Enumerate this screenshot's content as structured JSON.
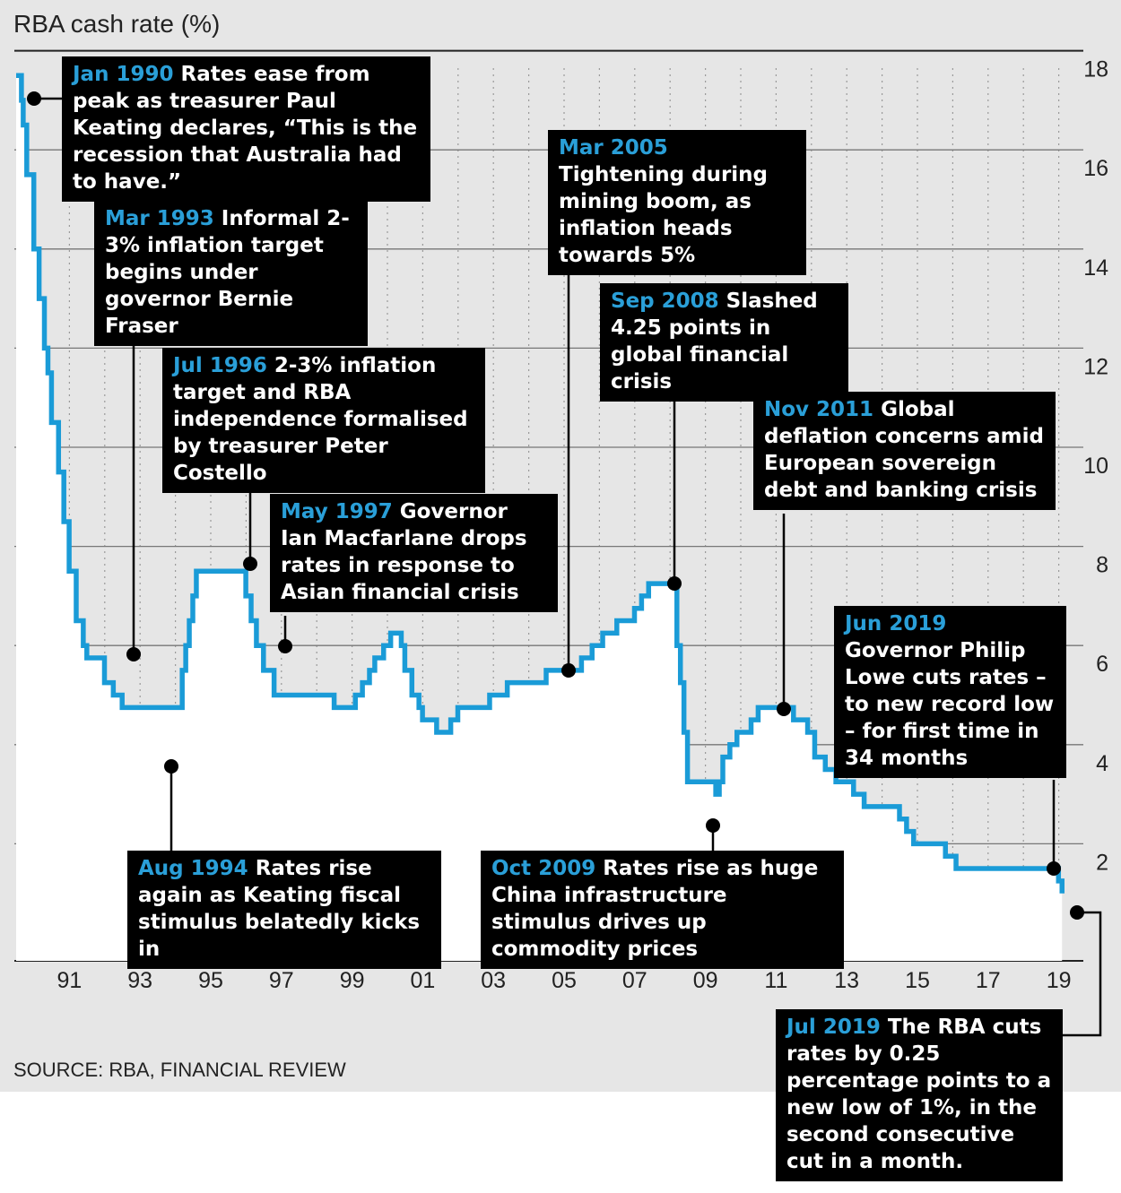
{
  "title": "RBA cash rate (%)",
  "source": "SOURCE: RBA, FINANCIAL REVIEW",
  "colors": {
    "line": "#1a9bd7",
    "date": "#2a9fd8",
    "box": "#000000",
    "background": "#e6e6e6"
  },
  "annotations": [
    {
      "date": "Jan 1990",
      "text": "Rates ease from peak as treasurer Paul Keating declares, “This is the recession that Australia had to have.”"
    },
    {
      "date": "Mar 1993",
      "text": "Informal 2-3% inflation target begins under governor Bernie Fraser"
    },
    {
      "date": "Jul 1996",
      "text": "2-3% inflation target and RBA independence formalised by treasurer Peter Costello"
    },
    {
      "date": "May 1997",
      "text": "Governor Ian Macfarlane drops rates in response to Asian financial crisis"
    },
    {
      "date": "Mar 2005",
      "text": "Tightening during mining boom, as inflation heads towards 5%"
    },
    {
      "date": "Sep 2008",
      "text": "Slashed 4.25 points in global financial crisis"
    },
    {
      "date": "Nov 2011",
      "text": "Global deflation concerns amid European sovereign debt and banking crisis"
    },
    {
      "date": "Jun 2019",
      "text": "Governor Philip Lowe cuts rates – to new record low – for first time in 34 months"
    },
    {
      "date": "Aug 1994",
      "text": "Rates rise again as Keating fiscal stimulus belatedly kicks in"
    },
    {
      "date": "Oct 2009",
      "text": "Rates rise as huge China infrastructure stimulus drives up commodity prices"
    },
    {
      "date": "Jul 2019",
      "text": "The RBA cuts rates by 0.25 percentage points to a new low of 1%, in the second consecutive cut in a month."
    }
  ],
  "chart_data": {
    "type": "line",
    "title": "RBA cash rate (%)",
    "ylim": [
      0,
      18
    ],
    "y_ticks": [
      "18",
      "16",
      "14",
      "12",
      "10",
      "8",
      "6",
      "4",
      "2"
    ],
    "x_ticks": [
      "91",
      "93",
      "95",
      "97",
      "99",
      "01",
      "03",
      "05",
      "07",
      "09",
      "11",
      "13",
      "15",
      "17",
      "19"
    ],
    "grid": true,
    "series": [
      {
        "x": [
          1990.0,
          1990.15,
          1990.2,
          1990.3,
          1990.5,
          1990.65,
          1990.8,
          1990.9,
          1991.0,
          1991.2,
          1991.35,
          1991.5,
          1991.7,
          1991.9,
          1992.0,
          1992.2,
          1992.5,
          1992.6,
          1992.75,
          1993.0,
          1993.2,
          1993.4,
          1994.0,
          1994.7,
          1994.8,
          1994.9,
          1995.0,
          1995.1,
          1995.2,
          1996.0,
          1996.5,
          1996.65,
          1996.8,
          1997.0,
          1997.3,
          1997.5,
          1997.7,
          1998.0,
          1999.0,
          1999.4,
          1999.6,
          1999.8,
          2000.0,
          2000.15,
          2000.4,
          2000.6,
          2000.9,
          2001.0,
          2001.2,
          2001.4,
          2001.5,
          2001.9,
          2002.3,
          2002.5,
          2003.0,
          2003.4,
          2003.9,
          2004.0,
          2005.0,
          2005.2,
          2006.0,
          2006.3,
          2006.6,
          2006.9,
          2007.0,
          2007.5,
          2007.7,
          2007.9,
          2008.3,
          2008.7,
          2008.8,
          2008.9,
          2009.0,
          2009.8,
          2009.9,
          2010.0,
          2010.2,
          2010.4,
          2010.8,
          2011.0,
          2011.9,
          2012.0,
          2012.4,
          2012.6,
          2012.9,
          2013.2,
          2013.7,
          2014.0,
          2015.0,
          2015.2,
          2015.4,
          2016.0,
          2016.3,
          2016.6,
          2019.4,
          2019.5,
          2019.6
        ],
        "y": [
          17.5,
          17.0,
          16.5,
          15.5,
          14.0,
          13.0,
          12.0,
          11.5,
          10.5,
          9.5,
          8.5,
          7.5,
          6.5,
          6.0,
          5.75,
          5.75,
          5.25,
          5.25,
          5.0,
          4.75,
          4.75,
          4.75,
          4.75,
          5.5,
          6.0,
          6.5,
          7.0,
          7.5,
          7.5,
          7.5,
          7.0,
          6.5,
          6.0,
          5.5,
          5.0,
          5.0,
          5.0,
          5.0,
          4.75,
          4.75,
          5.0,
          5.25,
          5.5,
          5.75,
          6.0,
          6.25,
          6.0,
          5.5,
          5.0,
          4.75,
          4.5,
          4.25,
          4.5,
          4.75,
          4.75,
          5.0,
          5.25,
          5.25,
          5.5,
          5.5,
          5.75,
          6.0,
          6.25,
          6.25,
          6.5,
          6.75,
          7.0,
          7.25,
          7.25,
          6.0,
          5.25,
          4.25,
          3.25,
          3.0,
          3.25,
          3.75,
          4.0,
          4.25,
          4.5,
          4.75,
          4.75,
          4.5,
          4.25,
          3.75,
          3.5,
          3.25,
          3.0,
          2.75,
          2.5,
          2.25,
          2.0,
          2.0,
          1.75,
          1.5,
          1.5,
          1.25,
          1.0
        ]
      }
    ]
  }
}
